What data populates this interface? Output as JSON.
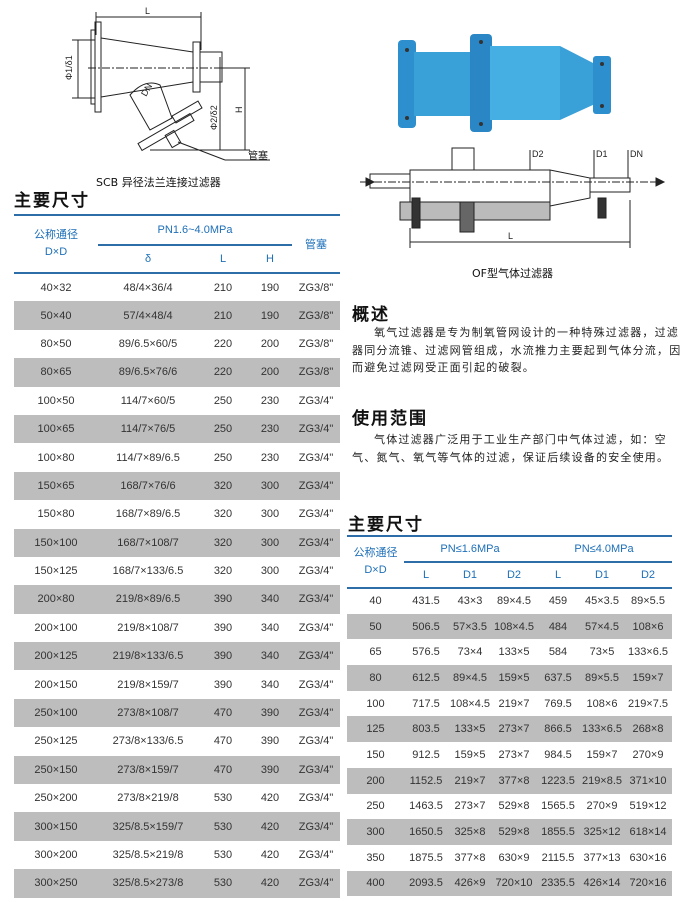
{
  "left_figure": {
    "caption": "SCB 异径法兰连接过滤器",
    "labels": {
      "L": "L",
      "phi1": "Φ1/δ1",
      "phi2": "Φ2/δ2",
      "H": "H",
      "DN": "DN",
      "plug": "管塞"
    }
  },
  "right_figure": {
    "caption": "OF型气体过滤器",
    "labels": {
      "D2": "D2",
      "D1": "D1",
      "DN": "DN",
      "L": "L"
    },
    "body_color": "#3aa0d8"
  },
  "left_table": {
    "title": "主要尺寸",
    "header": {
      "nominal": "公称通径",
      "dxd": "D×D",
      "group": "PN1.6~4.0MPa",
      "delta": "δ",
      "L": "L",
      "H": "H",
      "plug": "管塞"
    },
    "rows": [
      [
        "40×32",
        "48/4×36/4",
        "210",
        "190",
        "ZG3/8\""
      ],
      [
        "50×40",
        "57/4×48/4",
        "210",
        "190",
        "ZG3/8\""
      ],
      [
        "80×50",
        "89/6.5×60/5",
        "220",
        "200",
        "ZG3/8\""
      ],
      [
        "80×65",
        "89/6.5×76/6",
        "220",
        "200",
        "ZG3/8\""
      ],
      [
        "100×50",
        "114/7×60/5",
        "250",
        "230",
        "ZG3/4\""
      ],
      [
        "100×65",
        "114/7×76/5",
        "250",
        "230",
        "ZG3/4\""
      ],
      [
        "100×80",
        "114/7×89/6.5",
        "250",
        "230",
        "ZG3/4\""
      ],
      [
        "150×65",
        "168/7×76/6",
        "320",
        "300",
        "ZG3/4\""
      ],
      [
        "150×80",
        "168/7×89/6.5",
        "320",
        "300",
        "ZG3/4\""
      ],
      [
        "150×100",
        "168/7×108/7",
        "320",
        "300",
        "ZG3/4\""
      ],
      [
        "150×125",
        "168/7×133/6.5",
        "320",
        "300",
        "ZG3/4\""
      ],
      [
        "200×80",
        "219/8×89/6.5",
        "390",
        "340",
        "ZG3/4\""
      ],
      [
        "200×100",
        "219/8×108/7",
        "390",
        "340",
        "ZG3/4\""
      ],
      [
        "200×125",
        "219/8×133/6.5",
        "390",
        "340",
        "ZG3/4\""
      ],
      [
        "200×150",
        "219/8×159/7",
        "390",
        "340",
        "ZG3/4\""
      ],
      [
        "250×100",
        "273/8×108/7",
        "470",
        "390",
        "ZG3/4\""
      ],
      [
        "250×125",
        "273/8×133/6.5",
        "470",
        "390",
        "ZG3/4\""
      ],
      [
        "250×150",
        "273/8×159/7",
        "470",
        "390",
        "ZG3/4\""
      ],
      [
        "250×200",
        "273/8×219/8",
        "530",
        "420",
        "ZG3/4\""
      ],
      [
        "300×150",
        "325/8.5×159/7",
        "530",
        "420",
        "ZG3/4\""
      ],
      [
        "300×200",
        "325/8.5×219/8",
        "530",
        "420",
        "ZG3/4\""
      ],
      [
        "300×250",
        "325/8.5×273/8",
        "530",
        "420",
        "ZG3/4\""
      ]
    ]
  },
  "overview": {
    "title": "概述",
    "text": "氧气过滤器是专为制氧管网设计的一种特殊过滤器，过滤器同分流锥、过滤网管组成，水流推力主要起到气体分流，因而避免过滤网受正面引起的破裂。"
  },
  "usage": {
    "title": "使用范围",
    "text": "气体过滤器广泛用于工业生产部门中气体过滤，如：空气、氮气、氧气等气体的过滤，保证后续设备的安全使用。"
  },
  "right_table": {
    "title": "主要尺寸",
    "header": {
      "nominal": "公称通径",
      "dxd": "D×D",
      "group1": "PN≤1.6MPa",
      "group2": "PN≤4.0MPa",
      "L": "L",
      "D1": "D1",
      "D2": "D2"
    },
    "rows": [
      [
        "40",
        "431.5",
        "43×3",
        "89×4.5",
        "459",
        "45×3.5",
        "89×5.5"
      ],
      [
        "50",
        "506.5",
        "57×3.5",
        "108×4.5",
        "484",
        "57×4.5",
        "108×6"
      ],
      [
        "65",
        "576.5",
        "73×4",
        "133×5",
        "584",
        "73×5",
        "133×6.5"
      ],
      [
        "80",
        "612.5",
        "89×4.5",
        "159×5",
        "637.5",
        "89×5.5",
        "159×7"
      ],
      [
        "100",
        "717.5",
        "108×4.5",
        "219×7",
        "769.5",
        "108×6",
        "219×7.5"
      ],
      [
        "125",
        "803.5",
        "133×5",
        "273×7",
        "866.5",
        "133×6.5",
        "268×8"
      ],
      [
        "150",
        "912.5",
        "159×5",
        "273×7",
        "984.5",
        "159×7",
        "270×9"
      ],
      [
        "200",
        "1152.5",
        "219×7",
        "377×8",
        "1223.5",
        "219×8.5",
        "371×10"
      ],
      [
        "250",
        "1463.5",
        "273×7",
        "529×8",
        "1565.5",
        "270×9",
        "519×12"
      ],
      [
        "300",
        "1650.5",
        "325×8",
        "529×8",
        "1855.5",
        "325×12",
        "618×14"
      ],
      [
        "350",
        "1875.5",
        "377×8",
        "630×9",
        "2115.5",
        "377×13",
        "630×16"
      ],
      [
        "400",
        "2093.5",
        "426×9",
        "720×10",
        "2335.5",
        "426×14",
        "720×16"
      ]
    ]
  }
}
